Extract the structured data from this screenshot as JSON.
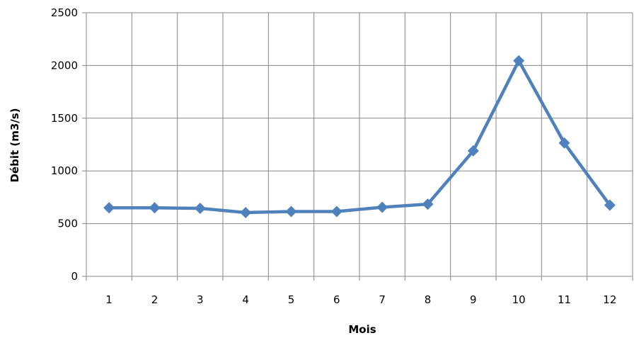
{
  "chart_data": {
    "type": "line",
    "title": "",
    "xlabel": "Mois",
    "ylabel": "Débit (m3/s)",
    "categories": [
      "1",
      "2",
      "3",
      "4",
      "5",
      "6",
      "7",
      "8",
      "9",
      "10",
      "11",
      "12"
    ],
    "series": [
      {
        "values": [
          650,
          650,
          645,
          605,
          615,
          615,
          655,
          685,
          1190,
          2045,
          1265,
          675
        ]
      }
    ],
    "ylim": [
      0,
      2500
    ],
    "yticks": [
      0,
      500,
      1000,
      1500,
      2000,
      2500
    ],
    "grid": true,
    "legend": "none",
    "colors": {
      "series": "#4F81BD",
      "grid": "#868686",
      "axis": "#868686"
    },
    "marker": "diamond"
  }
}
